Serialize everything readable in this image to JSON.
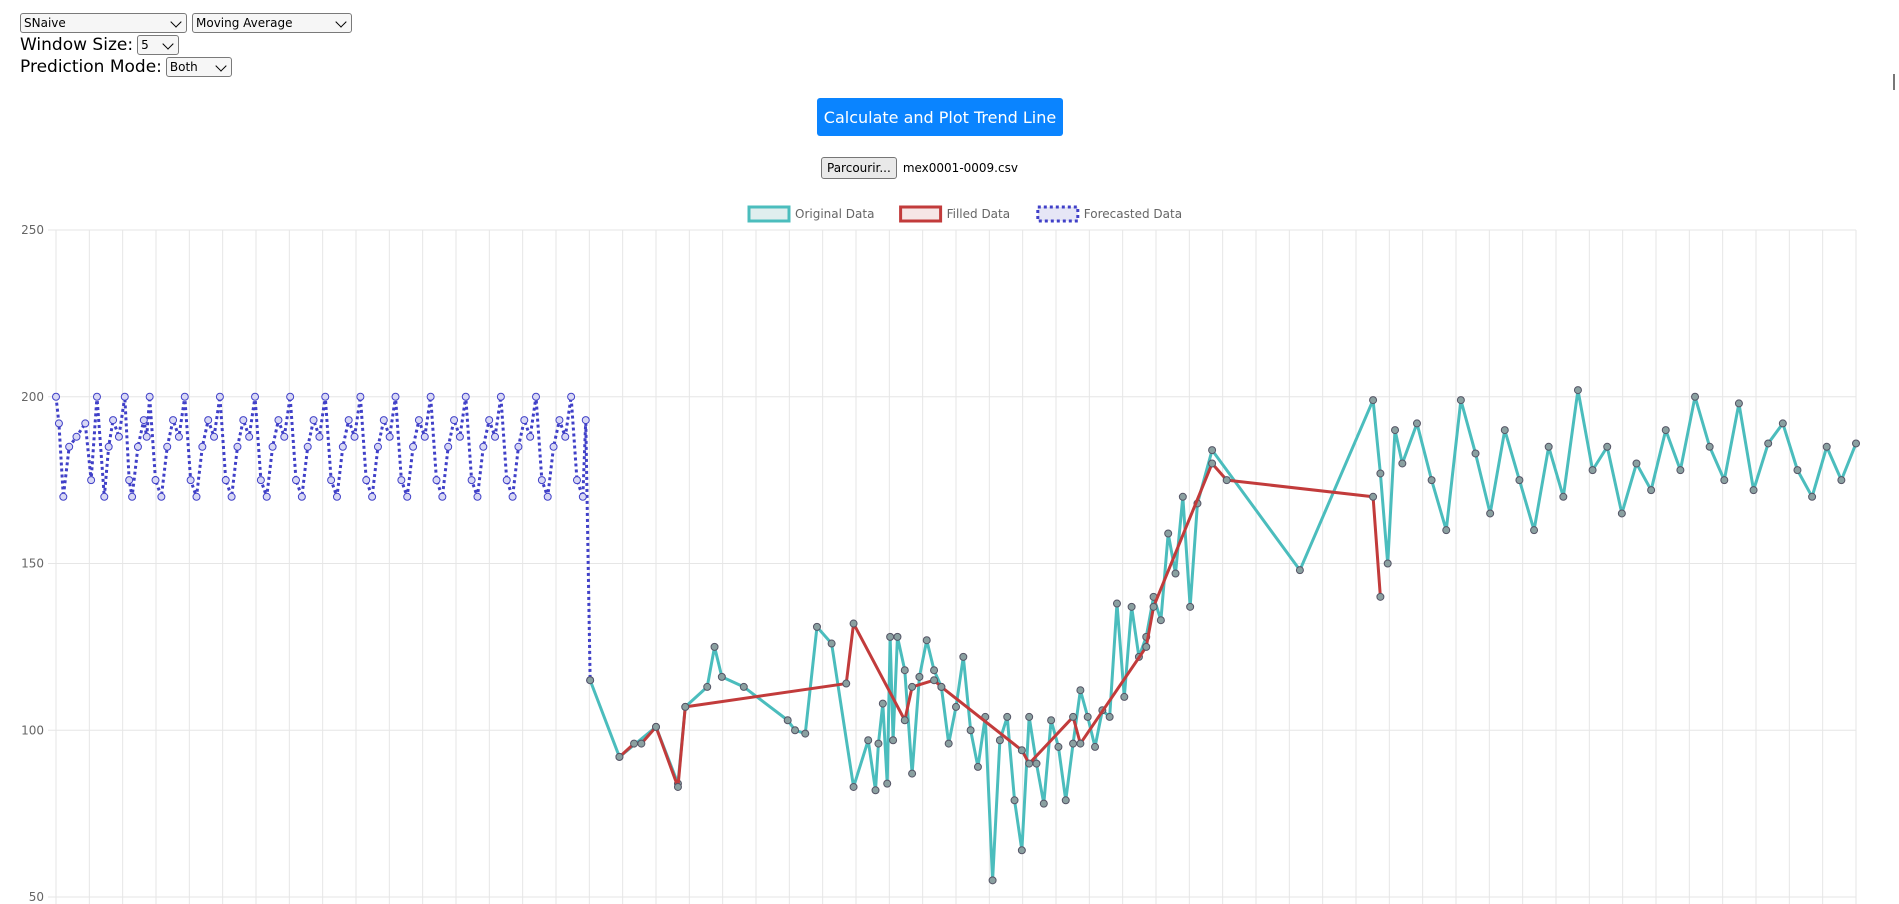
{
  "controls": {
    "method_select": {
      "value": "SNaive"
    },
    "smoothing_select": {
      "value": "Moving Average"
    },
    "window_size": {
      "label": "Window Size:",
      "value": "5"
    },
    "prediction_mode": {
      "label": "Prediction Mode:",
      "value": "Both"
    },
    "calculate_button": "Calculate and Plot Trend Line",
    "file_button": "Parcourir...",
    "file_name": "mex0001-0009.csv"
  },
  "colors": {
    "original": "#4bbdbd",
    "filled": "#c23b3b",
    "forecast": "#4040c8",
    "button": "#0a84ff"
  },
  "chart_data": {
    "type": "line",
    "legend": [
      "Original Data",
      "Filled Data",
      "Forecasted Data"
    ],
    "legend_position": "top-center",
    "y_ticks": [
      "250",
      "200",
      "150",
      "100",
      "50"
    ],
    "ylim": [
      50,
      250
    ],
    "grid": true,
    "series": [
      {
        "name": "Forecasted Data",
        "style": "dotted",
        "x": [
          0,
          2,
          5,
          9,
          14,
          20,
          24,
          28,
          33,
          36,
          39,
          43,
          47,
          50,
          52,
          56,
          60,
          62,
          64,
          68,
          72,
          76,
          80,
          84,
          88,
          92,
          96,
          100,
          104,
          108,
          112,
          116,
          120,
          124,
          128,
          132,
          136,
          140,
          144,
          148,
          152,
          156,
          160,
          164,
          168,
          172,
          176,
          180,
          184,
          188,
          192,
          196,
          200,
          204,
          208,
          212,
          216,
          220,
          224,
          228,
          232,
          236,
          240,
          244,
          248,
          252,
          256,
          260,
          264,
          268,
          272,
          276,
          280,
          284,
          288,
          292,
          296,
          300,
          304,
          308,
          312,
          316,
          320,
          324,
          328,
          332,
          336,
          340,
          344,
          348,
          352,
          356,
          360,
          362,
          365
        ],
        "values": [
          200,
          192,
          170,
          185,
          188,
          192,
          175,
          200,
          170,
          185,
          193,
          188,
          200,
          175,
          170,
          185,
          193,
          188,
          200,
          175,
          170,
          185,
          193,
          188,
          200,
          175,
          170,
          185,
          193,
          188,
          200,
          175,
          170,
          185,
          193,
          188,
          200,
          175,
          170,
          185,
          193,
          188,
          200,
          175,
          170,
          185,
          193,
          188,
          200,
          175,
          170,
          185,
          193,
          188,
          200,
          175,
          170,
          185,
          193,
          188,
          200,
          175,
          170,
          185,
          193,
          188,
          200,
          175,
          170,
          185,
          193,
          188,
          200,
          175,
          170,
          185,
          193,
          188,
          200,
          175,
          170,
          185,
          193,
          188,
          200,
          175,
          170,
          185,
          193,
          188,
          200,
          175,
          170,
          193,
          115
        ]
      },
      {
        "name": "Original Data",
        "style": "solid",
        "x": [
          365,
          385,
          410,
          425,
          430,
          445,
          450,
          455,
          470,
          500,
          505,
          512,
          520,
          530,
          545,
          555,
          560,
          562,
          565,
          568,
          570,
          572,
          575,
          580,
          585,
          590,
          595,
          600,
          605,
          610,
          615,
          620,
          625,
          630,
          635,
          640,
          645,
          650,
          655,
          660,
          665,
          670,
          675,
          680,
          685,
          690,
          695,
          700,
          705,
          710,
          715,
          720,
          725,
          730,
          735,
          740,
          745,
          750,
          755,
          760,
          765,
          770,
          775,
          780,
          790,
          850,
          900,
          905,
          910,
          915,
          920,
          930,
          940,
          950,
          960,
          970,
          980,
          990,
          1000,
          1010,
          1020,
          1030,
          1040,
          1050,
          1060,
          1070,
          1080,
          1090,
          1100,
          1110,
          1120,
          1130,
          1140,
          1150,
          1160,
          1170,
          1180,
          1190,
          1200,
          1210,
          1220,
          1230
        ],
        "values": [
          115,
          92,
          101,
          84,
          107,
          113,
          125,
          116,
          113,
          103,
          100,
          99,
          131,
          126,
          83,
          97,
          82,
          96,
          108,
          84,
          128,
          97,
          128,
          118,
          87,
          116,
          127,
          118,
          113,
          96,
          107,
          122,
          100,
          89,
          104,
          55,
          97,
          104,
          79,
          64,
          104,
          90,
          78,
          103,
          95,
          79,
          96,
          112,
          104,
          95,
          106,
          104,
          138,
          110,
          137,
          122,
          128,
          140,
          133,
          159,
          147,
          170,
          137,
          168,
          184,
          148,
          199,
          177,
          150,
          190,
          180,
          192,
          175,
          160,
          199,
          183,
          165,
          190,
          175,
          160,
          185,
          170,
          202,
          178,
          185,
          165,
          180,
          172,
          190,
          178,
          200,
          185,
          175,
          198,
          172,
          186,
          192,
          178,
          170,
          185,
          175,
          186
        ]
      },
      {
        "name": "Filled Data",
        "style": "solid",
        "x": [
          385,
          395,
          400,
          410,
          425,
          430,
          540,
          545,
          580,
          585,
          600,
          605,
          660,
          665,
          695,
          700,
          745,
          750,
          790,
          800,
          900,
          905
        ],
        "values": [
          92,
          96,
          96,
          101,
          83,
          107,
          114,
          132,
          103,
          113,
          115,
          113,
          94,
          90,
          104,
          96,
          125,
          137,
          180,
          175,
          170,
          140
        ]
      }
    ]
  }
}
